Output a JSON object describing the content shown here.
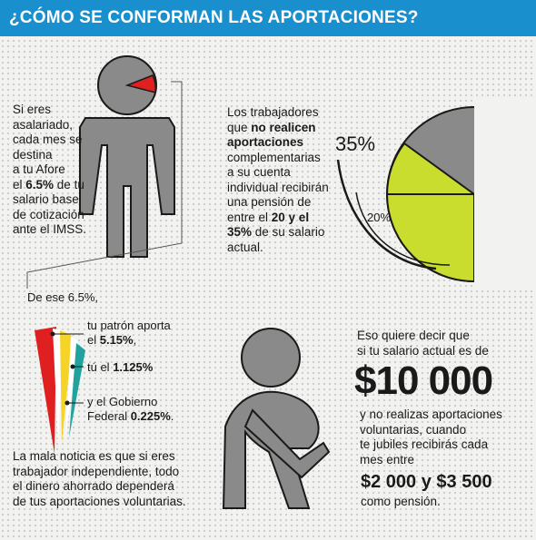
{
  "header": {
    "title": "¿CÓMO SE CONFORMAN LAS APORTACIONES?"
  },
  "salaried": {
    "lines": [
      "Si eres",
      "asalariado,",
      "cada mes se",
      "destina",
      "a tu Afore",
      "el ",
      "6.5%",
      " de tu",
      "salario base",
      "de cotización",
      "ante el IMSS."
    ]
  },
  "complementary": {
    "p1": "Los trabajadores",
    "p2a": "que ",
    "p2b": "no realicen",
    "p3": "aportaciones",
    "p4": "complementarias",
    "p5": "a su cuenta",
    "p6": "individual recibirán",
    "p7": "una pensión de",
    "p8a": "entre el ",
    "p8b": "20 y el",
    "p9a": "35%",
    "p9b": " de su salario",
    "p10": "actual."
  },
  "pie": {
    "label_35": "35%",
    "label_20": "20%"
  },
  "breakdown": {
    "intro": "De ese 6.5%,",
    "employer_a": "tu patrón aporta",
    "employer_b": "el ",
    "employer_value": "5.15%",
    "employer_end": ",",
    "worker_a": "tú el ",
    "worker_value": "1.125%",
    "gov_a": "y el Gobierno",
    "gov_b": "Federal ",
    "gov_value": "0.225%",
    "gov_end": "."
  },
  "independent": {
    "l1": "La mala noticia es que si eres",
    "l2": "trabajador independiente, todo",
    "l3": "el dinero ahorrado dependerá",
    "l4": "de tus aportaciones voluntarias."
  },
  "example": {
    "l1": "Eso quiere decir que",
    "l2": "si tu salario actual es de",
    "salary": "$10 000",
    "l3": "y no realizas aportaciones",
    "l4": "voluntarias, cuando",
    "l5": "te jubiles recibirás cada",
    "l6": "mes entre",
    "pension": "$2 000 y $3 500",
    "l7": "como pensión."
  },
  "colors": {
    "header_bg": "#1a8fce",
    "figure_gray": "#8a8a8a",
    "red": "#e02020",
    "yellow_green": "#c9dd2f",
    "yellow": "#f5d327",
    "teal": "#20a39e"
  }
}
